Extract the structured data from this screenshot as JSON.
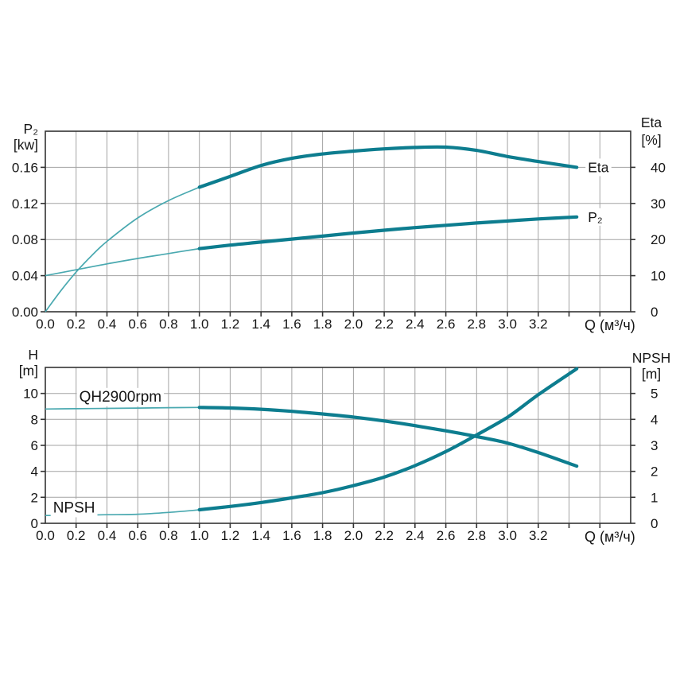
{
  "colors": {
    "background": "#ffffff",
    "curve_bold": "#0d7d8f",
    "curve_thin": "#4aa9b0",
    "grid": "#a3a3a3",
    "axis": "#333333",
    "text": "#161616"
  },
  "chart_data": [
    {
      "id": "p2-eta",
      "type": "line",
      "grid": "on",
      "x_axis": {
        "unit_label": "Q (м³/ч)",
        "min": 0,
        "max": 3.8,
        "grid_step": 0.2,
        "tick_labels": [
          "0.0",
          "0.2",
          "0.4",
          "0.6",
          "0.8",
          "1.0",
          "1.2",
          "1.4",
          "1.6",
          "1.8",
          "2.0",
          "2.2",
          "2.4",
          "2.6",
          "2.8",
          "3.0",
          "3.2"
        ]
      },
      "y_left": {
        "title_lines": [
          "P₂",
          "[kw]"
        ],
        "min": 0,
        "max": 0.2,
        "grid_step": 0.04,
        "tick_labels": [
          "0.00",
          "0.04",
          "0.08",
          "0.12",
          "0.16"
        ]
      },
      "y_right": {
        "title_lines": [
          "Eta",
          "[%]"
        ],
        "min": 0,
        "max": 50,
        "grid_step": 10,
        "tick_labels": [
          "0",
          "10",
          "20",
          "30",
          "40"
        ]
      },
      "series": [
        {
          "name": "eta",
          "end_label": "Eta",
          "axis": "right",
          "bold_from_x": 1.0,
          "points": [
            [
              0,
              0
            ],
            [
              0.1,
              5.8
            ],
            [
              0.2,
              11
            ],
            [
              0.3,
              15.5
            ],
            [
              0.4,
              19.5
            ],
            [
              0.6,
              26
            ],
            [
              0.8,
              30.8
            ],
            [
              1.0,
              34.5
            ],
            [
              1.2,
              37.5
            ],
            [
              1.4,
              40.5
            ],
            [
              1.6,
              42.5
            ],
            [
              1.8,
              43.7
            ],
            [
              2.0,
              44.5
            ],
            [
              2.2,
              45.1
            ],
            [
              2.4,
              45.5
            ],
            [
              2.6,
              45.6
            ],
            [
              2.8,
              44.7
            ],
            [
              3.0,
              43.0
            ],
            [
              3.2,
              41.6
            ],
            [
              3.45,
              40.0
            ]
          ]
        },
        {
          "name": "p2",
          "end_label": "P₂",
          "axis": "left",
          "bold_from_x": 1.0,
          "points": [
            [
              0,
              0.04
            ],
            [
              0.2,
              0.0465
            ],
            [
              0.4,
              0.053
            ],
            [
              0.6,
              0.059
            ],
            [
              0.8,
              0.0645
            ],
            [
              1.0,
              0.07
            ],
            [
              1.2,
              0.0738
            ],
            [
              1.4,
              0.0772
            ],
            [
              1.6,
              0.0805
            ],
            [
              1.8,
              0.0838
            ],
            [
              2.0,
              0.0872
            ],
            [
              2.2,
              0.0903
            ],
            [
              2.4,
              0.0932
            ],
            [
              2.6,
              0.0958
            ],
            [
              2.8,
              0.0983
            ],
            [
              3.0,
              0.1005
            ],
            [
              3.2,
              0.1028
            ],
            [
              3.45,
              0.105
            ]
          ]
        }
      ],
      "annotations": []
    },
    {
      "id": "qh-npsh",
      "type": "line",
      "grid": "on",
      "x_axis": {
        "unit_label": "Q (м³/ч)",
        "min": 0,
        "max": 3.8,
        "grid_step": 0.2,
        "tick_labels": [
          "0.0",
          "0.2",
          "0.4",
          "0.6",
          "0.8",
          "1.0",
          "1.2",
          "1.4",
          "1.6",
          "1.8",
          "2.0",
          "2.2",
          "2.4",
          "2.6",
          "2.8",
          "3.0",
          "3.2"
        ]
      },
      "y_left": {
        "title_lines": [
          "H",
          "[m]"
        ],
        "min": 0,
        "max": 12,
        "grid_step": 2,
        "tick_labels": [
          "0",
          "2",
          "4",
          "6",
          "8",
          "10"
        ]
      },
      "y_right": {
        "title_lines": [
          "NPSH",
          "[m]"
        ],
        "min": 0,
        "max": 6,
        "grid_step": 1,
        "tick_labels": [
          "0",
          "1",
          "2",
          "3",
          "4",
          "5"
        ]
      },
      "series": [
        {
          "name": "qh",
          "end_label": "",
          "axis": "left",
          "bold_from_x": 1.0,
          "points": [
            [
              0,
              8.8
            ],
            [
              0.2,
              8.82
            ],
            [
              0.4,
              8.85
            ],
            [
              0.6,
              8.87
            ],
            [
              0.8,
              8.9
            ],
            [
              1.0,
              8.92
            ],
            [
              1.2,
              8.88
            ],
            [
              1.4,
              8.78
            ],
            [
              1.6,
              8.62
            ],
            [
              1.8,
              8.42
            ],
            [
              2.0,
              8.18
            ],
            [
              2.2,
              7.88
            ],
            [
              2.4,
              7.52
            ],
            [
              2.6,
              7.12
            ],
            [
              2.8,
              6.68
            ],
            [
              3.0,
              6.18
            ],
            [
              3.2,
              5.45
            ],
            [
              3.45,
              4.4
            ]
          ]
        },
        {
          "name": "npsh",
          "end_label": "",
          "axis": "right",
          "bold_from_x": 1.0,
          "points": [
            [
              0,
              0.3
            ],
            [
              0.2,
              0.31
            ],
            [
              0.4,
              0.33
            ],
            [
              0.6,
              0.35
            ],
            [
              0.8,
              0.42
            ],
            [
              1.0,
              0.52
            ],
            [
              1.2,
              0.65
            ],
            [
              1.4,
              0.8
            ],
            [
              1.6,
              0.98
            ],
            [
              1.8,
              1.18
            ],
            [
              2.0,
              1.45
            ],
            [
              2.2,
              1.78
            ],
            [
              2.4,
              2.22
            ],
            [
              2.6,
              2.76
            ],
            [
              2.8,
              3.4
            ],
            [
              3.0,
              4.08
            ],
            [
              3.2,
              4.95
            ],
            [
              3.45,
              5.95
            ]
          ]
        }
      ],
      "annotations": [
        {
          "text": "QH2900rpm",
          "x": 0.22,
          "y": 9.75
        },
        {
          "text": "NPSH",
          "x": 0.05,
          "y": 1.2
        }
      ]
    }
  ]
}
